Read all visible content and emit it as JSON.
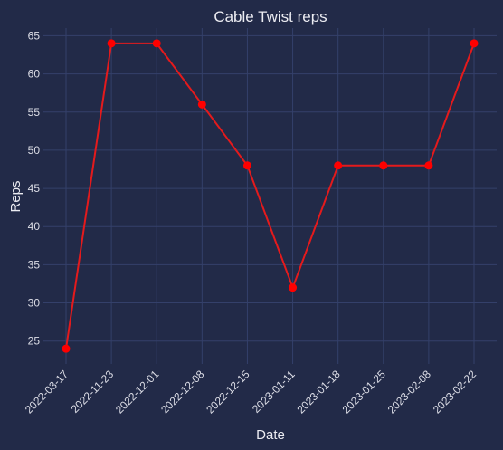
{
  "chart_data": {
    "type": "line",
    "title": "Cable Twist reps",
    "xlabel": "Date",
    "ylabel": "Reps",
    "categories": [
      "2022-03-17",
      "2022-11-23",
      "2022-12-01",
      "2022-12-08",
      "2022-12-15",
      "2023-01-11",
      "2023-01-18",
      "2023-01-25",
      "2023-02-08",
      "2023-02-22"
    ],
    "values": [
      24,
      64,
      64,
      56,
      48,
      32,
      48,
      48,
      48,
      64
    ],
    "yticks": [
      25,
      30,
      35,
      40,
      45,
      50,
      55,
      60,
      65
    ],
    "ylim": [
      22,
      66
    ],
    "grid": true,
    "line_color": "#e41a1c",
    "marker_color": "#ff0000",
    "background": "#222a48"
  }
}
